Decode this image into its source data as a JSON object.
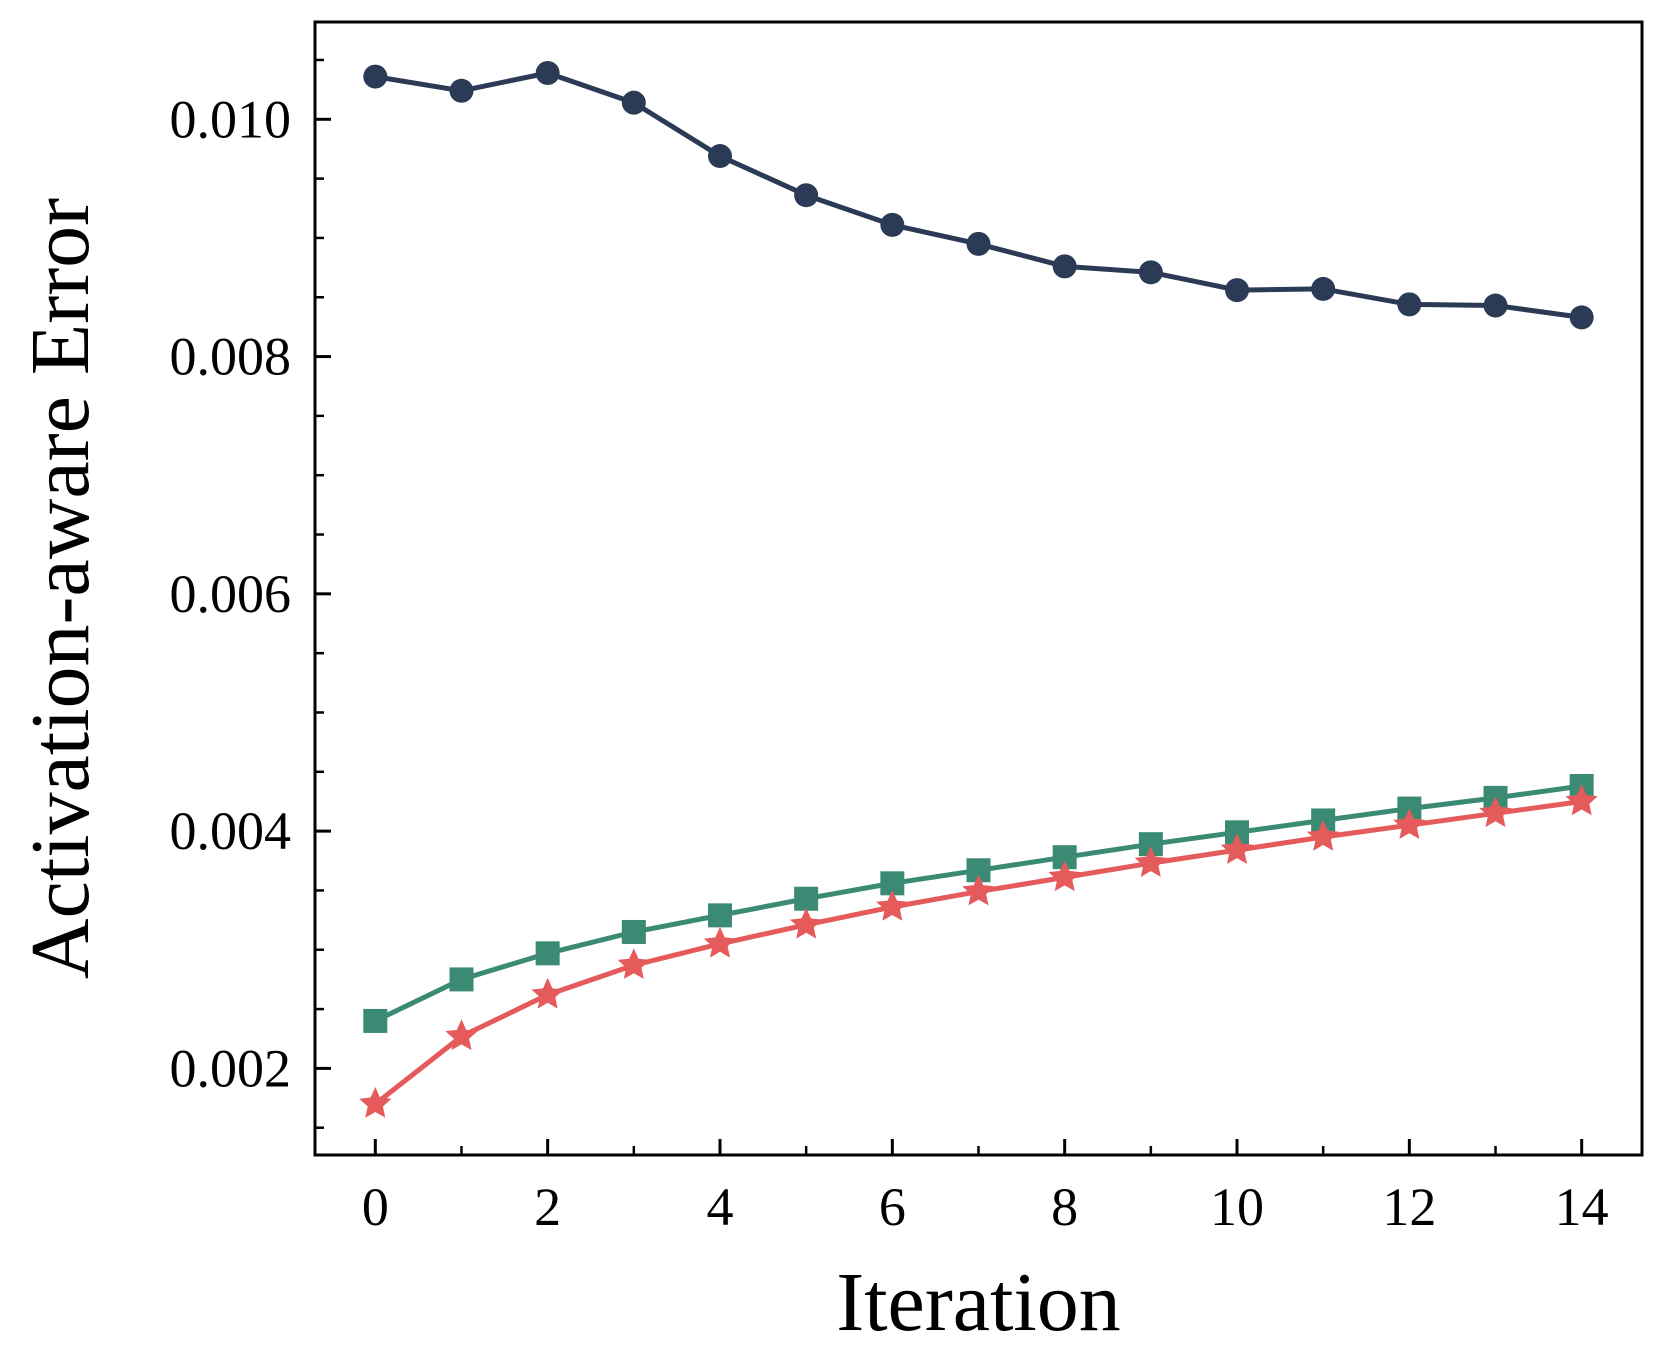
{
  "chart_data": {
    "type": "line",
    "title": "",
    "xlabel": "Iteration",
    "ylabel": "Activation-aware Error",
    "xlim": [
      -0.7,
      14.7
    ],
    "ylim": [
      0.00127,
      0.01082
    ],
    "x_ticks": [
      0,
      2,
      4,
      6,
      8,
      10,
      12,
      14
    ],
    "x_tick_labels": [
      "0",
      "2",
      "4",
      "6",
      "8",
      "10",
      "12",
      "14"
    ],
    "x_minor_ticks": [
      1,
      3,
      5,
      7,
      9,
      11,
      13
    ],
    "y_ticks": [
      0.002,
      0.004,
      0.006,
      0.008,
      0.01
    ],
    "y_tick_labels": [
      "0.002",
      "0.004",
      "0.006",
      "0.008",
      "0.010"
    ],
    "y_minor_ticks": [
      0.0015,
      0.0025,
      0.003,
      0.0035,
      0.0045,
      0.005,
      0.0055,
      0.0065,
      0.007,
      0.0075,
      0.0085,
      0.009,
      0.0095,
      0.0105
    ],
    "grid": false,
    "legend": "none",
    "x": [
      0,
      1,
      2,
      3,
      4,
      5,
      6,
      7,
      8,
      9,
      10,
      11,
      12,
      13,
      14
    ],
    "series": [
      {
        "name": "dark-circle-series",
        "marker": "circle",
        "color": "#2b3a55",
        "values": [
          0.01036,
          0.01024,
          0.01039,
          0.01014,
          0.00969,
          0.00936,
          0.00911,
          0.00895,
          0.00876,
          0.00871,
          0.00856,
          0.00857,
          0.00844,
          0.00843,
          0.00833
        ]
      },
      {
        "name": "green-square-series",
        "marker": "square",
        "color": "#3a8a74",
        "values": [
          0.0024,
          0.00275,
          0.00297,
          0.00315,
          0.00329,
          0.00343,
          0.00356,
          0.00367,
          0.00378,
          0.00389,
          0.00399,
          0.00409,
          0.00419,
          0.00428,
          0.00438
        ]
      },
      {
        "name": "red-star-series",
        "marker": "star",
        "color": "#e55a5a",
        "values": [
          0.0017,
          0.00227,
          0.00262,
          0.00287,
          0.00305,
          0.00321,
          0.00336,
          0.00349,
          0.00361,
          0.00373,
          0.00384,
          0.00395,
          0.00405,
          0.00415,
          0.00425
        ]
      }
    ]
  }
}
